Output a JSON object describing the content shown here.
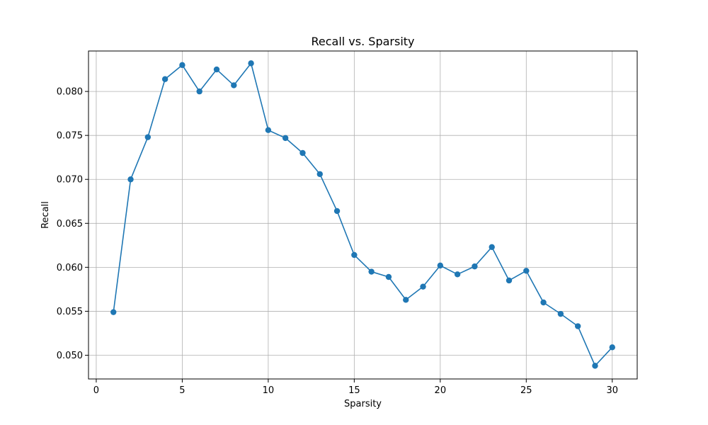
{
  "chart_data": {
    "type": "line",
    "title": "Recall vs. Sparsity",
    "xlabel": "Sparsity",
    "ylabel": "Recall",
    "xlim": [
      -0.45,
      31.45
    ],
    "ylim": [
      0.0473,
      0.0846
    ],
    "grid": true,
    "x_ticks": [
      0,
      5,
      10,
      15,
      20,
      25,
      30
    ],
    "y_ticks": [
      0.05,
      0.055,
      0.06,
      0.065,
      0.07,
      0.075,
      0.08
    ],
    "y_tick_labels": [
      "0.050",
      "0.055",
      "0.060",
      "0.065",
      "0.070",
      "0.075",
      "0.080"
    ],
    "x_tick_labels": [
      "0",
      "5",
      "10",
      "15",
      "20",
      "25",
      "30"
    ],
    "series": [
      {
        "color": "#1f77b4",
        "marker": "circle",
        "x": [
          1,
          2,
          3,
          4,
          5,
          6,
          7,
          8,
          9,
          10,
          11,
          12,
          13,
          14,
          15,
          16,
          17,
          18,
          19,
          20,
          21,
          22,
          23,
          24,
          25,
          26,
          27,
          28,
          29,
          30
        ],
        "y": [
          0.0549,
          0.07,
          0.0748,
          0.0814,
          0.083,
          0.08,
          0.0825,
          0.0807,
          0.0832,
          0.0756,
          0.0747,
          0.073,
          0.0706,
          0.0664,
          0.0614,
          0.0595,
          0.0589,
          0.0563,
          0.0578,
          0.0602,
          0.0592,
          0.0601,
          0.0623,
          0.0585,
          0.0596,
          0.056,
          0.0547,
          0.0533,
          0.0488,
          0.0509
        ]
      }
    ]
  }
}
